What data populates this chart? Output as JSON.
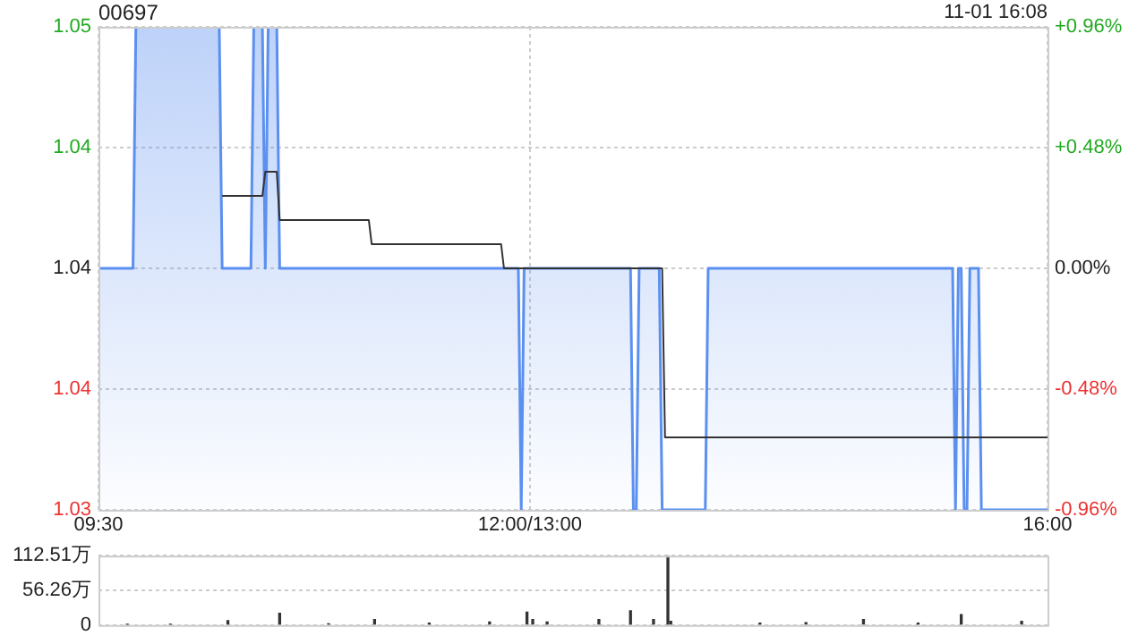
{
  "chart_data": [
    {
      "type": "line",
      "title": "00697",
      "annotations": [
        "11-01 16:08"
      ],
      "categories": [
        "09:30",
        null,
        null,
        null,
        null,
        null,
        null,
        null,
        null,
        null,
        null,
        null,
        null,
        null,
        null,
        null,
        null,
        null,
        null,
        null,
        null,
        null,
        null,
        null,
        null,
        null,
        null,
        null,
        null,
        null,
        null,
        null,
        null,
        null,
        null,
        null,
        null,
        null,
        null,
        null,
        null,
        null,
        null,
        null,
        null,
        null,
        null,
        null,
        null,
        null,
        null,
        null,
        null,
        null,
        null,
        null,
        null,
        null,
        null,
        null,
        null,
        null,
        null,
        null,
        null,
        null,
        null,
        null,
        null,
        null,
        null,
        null,
        null,
        null,
        null,
        null,
        null,
        null,
        null,
        null,
        null,
        null,
        null,
        null,
        null,
        null,
        null,
        null,
        null,
        null,
        null,
        null,
        null,
        null,
        null,
        null,
        null,
        null,
        null,
        null,
        null,
        null,
        null,
        null,
        null,
        null,
        null,
        null,
        null,
        null,
        null,
        null,
        null,
        null,
        null,
        null,
        null,
        null,
        null,
        null,
        null,
        null,
        null,
        null,
        null,
        null,
        null,
        null,
        null,
        null,
        null,
        null,
        null,
        null,
        null,
        null,
        null,
        null,
        null,
        null,
        null,
        null,
        null,
        null,
        null,
        null,
        null,
        null,
        null,
        null,
        "12:00/13:00",
        null,
        null,
        null,
        null,
        null,
        null,
        null,
        null,
        null,
        null,
        null,
        null,
        null,
        null,
        null,
        null,
        null,
        null,
        null,
        null,
        null,
        null,
        null,
        null,
        null,
        null,
        null,
        null,
        null,
        null,
        null,
        null,
        null,
        null,
        null,
        null,
        null,
        null,
        null,
        null,
        null,
        null,
        null,
        null,
        null,
        null,
        null,
        null,
        null,
        null,
        null,
        null,
        null,
        null,
        null,
        null,
        null,
        null,
        null,
        null,
        null,
        null,
        null,
        null,
        null,
        null,
        null,
        null,
        null,
        null,
        null,
        null,
        null,
        null,
        null,
        null,
        null,
        null,
        null,
        null,
        null,
        null,
        null,
        null,
        null,
        null,
        null,
        null,
        null,
        null,
        null,
        null,
        null,
        null,
        null,
        null,
        null,
        null,
        null,
        null,
        null,
        null,
        null,
        null,
        null,
        null,
        null,
        null,
        null,
        null,
        null,
        null,
        null,
        null,
        null,
        null,
        null,
        null,
        null,
        null,
        null,
        null,
        null,
        null,
        null,
        null,
        null,
        null,
        null,
        null,
        null,
        null,
        null,
        null,
        null,
        null,
        null,
        null,
        null,
        null,
        null,
        null,
        null,
        null,
        null,
        null,
        null,
        null,
        null,
        null,
        null,
        null,
        null,
        null,
        null,
        null,
        null,
        null,
        null,
        null,
        null,
        null,
        null,
        null,
        null,
        null,
        null,
        null,
        null,
        null,
        null,
        null,
        null,
        null,
        null,
        null,
        null,
        null,
        null,
        "16:00"
      ],
      "ylim": [
        1.03,
        1.05
      ],
      "yticks": [
        1.03,
        {
          "value": 1.035,
          "label": "1.04"
        },
        1.04,
        {
          "value": 1.045,
          "label": "1.04"
        },
        1.05
      ],
      "y2lim": [
        -0.96,
        0.96
      ],
      "y2ticks": [
        {
          "value": -0.96,
          "label": "-0.96%"
        },
        {
          "value": -0.48,
          "label": "-0.48%"
        },
        {
          "value": 0,
          "label": "0.00%"
        },
        {
          "value": 0.48,
          "label": "+0.48%"
        },
        {
          "value": 0.96,
          "label": "+0.96%"
        }
      ],
      "grid": true,
      "legend": false,
      "series": [
        {
          "type": "area",
          "color": "#5b8ff0",
          "values": [
            1.04,
            1.04,
            1.04,
            1.04,
            1.04,
            1.04,
            1.04,
            1.04,
            1.04,
            1.04,
            1.04,
            1.04,
            1.04,
            1.05,
            1.05,
            1.05,
            1.05,
            1.05,
            1.05,
            1.05,
            1.05,
            1.05,
            1.05,
            1.05,
            1.05,
            1.05,
            1.05,
            1.05,
            1.05,
            1.05,
            1.05,
            1.05,
            1.05,
            1.05,
            1.05,
            1.05,
            1.05,
            1.05,
            1.05,
            1.05,
            1.05,
            1.05,
            1.05,
            1.04,
            1.04,
            1.04,
            1.04,
            1.04,
            1.04,
            1.04,
            1.04,
            1.04,
            1.04,
            1.04,
            1.05,
            1.05,
            1.05,
            1.05,
            1.04,
            1.05,
            1.05,
            1.05,
            1.05,
            1.04,
            1.04,
            1.04,
            1.04,
            1.04,
            1.04,
            1.04,
            1.04,
            1.04,
            1.04,
            1.04,
            1.04,
            1.04,
            1.04,
            1.04,
            1.04,
            1.04,
            1.04,
            1.04,
            1.04,
            1.04,
            1.04,
            1.04,
            1.04,
            1.04,
            1.04,
            1.04,
            1.04,
            1.04,
            1.04,
            1.04,
            1.04,
            1.04,
            1.04,
            1.04,
            1.04,
            1.04,
            1.04,
            1.04,
            1.04,
            1.04,
            1.04,
            1.04,
            1.04,
            1.04,
            1.04,
            1.04,
            1.04,
            1.04,
            1.04,
            1.04,
            1.04,
            1.04,
            1.04,
            1.04,
            1.04,
            1.04,
            1.04,
            1.04,
            1.04,
            1.04,
            1.04,
            1.04,
            1.04,
            1.04,
            1.04,
            1.04,
            1.04,
            1.04,
            1.04,
            1.04,
            1.04,
            1.04,
            1.04,
            1.04,
            1.04,
            1.04,
            1.04,
            1.04,
            1.04,
            1.04,
            1.04,
            1.04,
            1.04,
            1.03,
            1.04,
            1.04,
            1.04,
            1.04,
            1.04,
            1.04,
            1.04,
            1.04,
            1.04,
            1.04,
            1.04,
            1.04,
            1.04,
            1.04,
            1.04,
            1.04,
            1.04,
            1.04,
            1.04,
            1.04,
            1.04,
            1.04,
            1.04,
            1.04,
            1.04,
            1.04,
            1.04,
            1.04,
            1.04,
            1.04,
            1.04,
            1.04,
            1.04,
            1.04,
            1.04,
            1.04,
            1.04,
            1.04,
            1.03,
            1.03,
            1.04,
            1.04,
            1.04,
            1.04,
            1.04,
            1.04,
            1.04,
            1.04,
            1.03,
            1.03,
            1.03,
            1.03,
            1.03,
            1.03,
            1.03,
            1.03,
            1.03,
            1.03,
            1.03,
            1.03,
            1.03,
            1.03,
            1.03,
            1.03,
            1.04,
            1.04,
            1.04,
            1.04,
            1.04,
            1.04,
            1.04,
            1.04,
            1.04,
            1.04,
            1.04,
            1.04,
            1.04,
            1.04,
            1.04,
            1.04,
            1.04,
            1.04,
            1.04,
            1.04,
            1.04,
            1.04,
            1.04,
            1.04,
            1.04,
            1.04,
            1.04,
            1.04,
            1.04,
            1.04,
            1.04,
            1.04,
            1.04,
            1.04,
            1.04,
            1.04,
            1.04,
            1.04,
            1.04,
            1.04,
            1.04,
            1.04,
            1.04,
            1.04,
            1.04,
            1.04,
            1.04,
            1.04,
            1.04,
            1.04,
            1.04,
            1.04,
            1.04,
            1.04,
            1.04,
            1.04,
            1.04,
            1.04,
            1.04,
            1.04,
            1.04,
            1.04,
            1.04,
            1.04,
            1.04,
            1.04,
            1.04,
            1.04,
            1.04,
            1.04,
            1.04,
            1.04,
            1.04,
            1.04,
            1.04,
            1.04,
            1.04,
            1.04,
            1.04,
            1.04,
            1.04,
            1.04,
            1.04,
            1.04,
            1.04,
            1.04,
            1.03,
            1.04,
            1.04,
            1.03,
            1.03,
            1.04,
            1.04,
            1.04,
            1.04,
            1.03,
            1.03,
            1.03,
            1.03,
            1.03,
            1.03,
            1.03,
            1.03,
            1.03,
            1.03,
            1.03,
            1.03,
            1.03,
            1.03,
            1.03,
            1.03,
            1.03,
            1.03,
            1.03,
            1.03,
            1.03,
            1.03,
            1.03,
            1.03
          ]
        },
        {
          "type": "line",
          "color": "#333333",
          "values": [
            null,
            null,
            null,
            null,
            null,
            null,
            null,
            null,
            null,
            null,
            null,
            null,
            null,
            null,
            null,
            null,
            null,
            null,
            null,
            null,
            null,
            null,
            null,
            null,
            null,
            null,
            null,
            null,
            null,
            null,
            null,
            null,
            null,
            null,
            null,
            null,
            null,
            null,
            null,
            null,
            null,
            null,
            null,
            1.043,
            1.043,
            1.043,
            1.043,
            1.043,
            1.043,
            1.043,
            1.043,
            1.043,
            1.043,
            1.043,
            1.043,
            1.043,
            1.043,
            1.043,
            1.044,
            1.044,
            1.044,
            1.044,
            1.044,
            1.042,
            1.042,
            1.042,
            1.042,
            1.042,
            1.042,
            1.042,
            1.042,
            1.042,
            1.042,
            1.042,
            1.042,
            1.042,
            1.042,
            1.042,
            1.042,
            1.042,
            1.042,
            1.042,
            1.042,
            1.042,
            1.042,
            1.042,
            1.042,
            1.042,
            1.042,
            1.042,
            1.042,
            1.042,
            1.042,
            1.042,
            1.042,
            1.041,
            1.041,
            1.041,
            1.041,
            1.041,
            1.041,
            1.041,
            1.041,
            1.041,
            1.041,
            1.041,
            1.041,
            1.041,
            1.041,
            1.041,
            1.041,
            1.041,
            1.041,
            1.041,
            1.041,
            1.041,
            1.041,
            1.041,
            1.041,
            1.041,
            1.041,
            1.041,
            1.041,
            1.041,
            1.041,
            1.041,
            1.041,
            1.041,
            1.041,
            1.041,
            1.041,
            1.041,
            1.041,
            1.041,
            1.041,
            1.041,
            1.041,
            1.041,
            1.041,
            1.041,
            1.041,
            1.04,
            1.04,
            1.04,
            1.04,
            1.04,
            1.04,
            1.04,
            1.04,
            1.04,
            1.04,
            1.04,
            1.04,
            1.04,
            1.04,
            1.04,
            1.04,
            1.04,
            1.04,
            1.04,
            1.04,
            1.04,
            1.04,
            1.04,
            1.04,
            1.04,
            1.04,
            1.04,
            1.04,
            1.04,
            1.04,
            1.04,
            1.04,
            1.04,
            1.04,
            1.04,
            1.04,
            1.04,
            1.04,
            1.04,
            1.04,
            1.04,
            1.04,
            1.04,
            1.04,
            1.04,
            1.04,
            1.04,
            1.04,
            1.04,
            1.04,
            1.04,
            1.04,
            1.04,
            1.04,
            1.04,
            1.04,
            1.033,
            1.033,
            1.033,
            1.033,
            1.033,
            1.033,
            1.033,
            1.033,
            1.033,
            1.033,
            1.033,
            1.033,
            1.033,
            1.033,
            1.033,
            1.033,
            1.033,
            1.033,
            1.033,
            1.033,
            1.033,
            1.033,
            1.033,
            1.033,
            1.033,
            1.033,
            1.033,
            1.033,
            1.033,
            1.033,
            1.033,
            1.033,
            1.033,
            1.033,
            1.033,
            1.033,
            1.033,
            1.033,
            1.033,
            1.033,
            1.033,
            1.033,
            1.033,
            1.033,
            1.033,
            1.033,
            1.033,
            1.033,
            1.033,
            1.033,
            1.033,
            1.033,
            1.033,
            1.033,
            1.033,
            1.033,
            1.033,
            1.033,
            1.033,
            1.033,
            1.033,
            1.033,
            1.033,
            1.033,
            1.033,
            1.033,
            1.033,
            1.033,
            1.033,
            1.033,
            1.033,
            1.033,
            1.033,
            1.033,
            1.033,
            1.033,
            1.033,
            1.033,
            1.033,
            1.033,
            1.033,
            1.033,
            1.033,
            1.033,
            1.033,
            1.033,
            1.033,
            1.033,
            1.033,
            1.033,
            1.033,
            1.033,
            1.033,
            1.033,
            1.033,
            1.033,
            1.033,
            1.033,
            1.033,
            1.033,
            1.033,
            1.033,
            1.033,
            1.033,
            1.033,
            1.033,
            1.033,
            1.033,
            1.033,
            1.033,
            1.033,
            1.033,
            1.033,
            1.033,
            1.033,
            1.033,
            1.033,
            1.033,
            1.033,
            1.033,
            1.033,
            1.033,
            1.033,
            1.033,
            1.033,
            1.033,
            1.033,
            1.033,
            1.033,
            1.033,
            1.033,
            1.033,
            1.033,
            1.033
          ]
        }
      ]
    },
    {
      "type": "bar",
      "color": "#333333",
      "ylim": [
        0,
        112.51
      ],
      "yticks": [
        0,
        {
          "value": 56.26,
          "label": "56.26万"
        },
        {
          "value": 112.51,
          "label": "112.51万"
        }
      ],
      "grid": "y",
      "legend": false,
      "tick_labels": "y",
      "categories": [
        null,
        null,
        null,
        null,
        null,
        null,
        null,
        null,
        null,
        null,
        null,
        null,
        null,
        null,
        null,
        null,
        null,
        null,
        null,
        null,
        null,
        null,
        null,
        null,
        null,
        null,
        null,
        null,
        null,
        null,
        null,
        null,
        null,
        null,
        null,
        null,
        null,
        null,
        null,
        null,
        null,
        null,
        null,
        null,
        null,
        null,
        null,
        null,
        null,
        null,
        null,
        null,
        null,
        null,
        null,
        null,
        null,
        null,
        null,
        null,
        null,
        null,
        null,
        null,
        null,
        null,
        null,
        null,
        null,
        null,
        null,
        null,
        null,
        null,
        null,
        null,
        null,
        null,
        null,
        null,
        null,
        null,
        null,
        null,
        null,
        null,
        null,
        null,
        null,
        null,
        null,
        null,
        null,
        null,
        null,
        null,
        null,
        null,
        null,
        null,
        null,
        null,
        null,
        null,
        null,
        null,
        null,
        null,
        null,
        null,
        null,
        null,
        null,
        null,
        null,
        null,
        null,
        null,
        null,
        null,
        null,
        null,
        null,
        null,
        null,
        null,
        null,
        null,
        null,
        null,
        null,
        null,
        null,
        null,
        null,
        null,
        null,
        null,
        null,
        null,
        null,
        null,
        null,
        null,
        null,
        null,
        null,
        null,
        null,
        null,
        null,
        null,
        null,
        null,
        null,
        null,
        null,
        null,
        null,
        null,
        null,
        null,
        null,
        null,
        null,
        null,
        null,
        null,
        null,
        null,
        null,
        null,
        null,
        null,
        null,
        null,
        null,
        null,
        null,
        null,
        null,
        null,
        null,
        null,
        null,
        null,
        null,
        null,
        null,
        null,
        null,
        null,
        null,
        null,
        null,
        null,
        null,
        null,
        null,
        null,
        null,
        null,
        null,
        null,
        null,
        null,
        null,
        null,
        null,
        null,
        null,
        null,
        null,
        null,
        null,
        null,
        null,
        null,
        null,
        null,
        null,
        null,
        null,
        null,
        null,
        null,
        null,
        null,
        null,
        null,
        null,
        null,
        null,
        null,
        null,
        null,
        null,
        null,
        null,
        null,
        null,
        null,
        null,
        null,
        null,
        null,
        null,
        null,
        null,
        null,
        null,
        null,
        null,
        null,
        null,
        null,
        null,
        null,
        null,
        null,
        null,
        null,
        null,
        null,
        null,
        null,
        null,
        null,
        null,
        null,
        null,
        null,
        null,
        null,
        null,
        null,
        null,
        null,
        null,
        null,
        null,
        null,
        null,
        null,
        null,
        null,
        null,
        null,
        null,
        null,
        null,
        null,
        null,
        null,
        null,
        null,
        null,
        null,
        null,
        null,
        null,
        null,
        null,
        null,
        null,
        null,
        null,
        null,
        null,
        null,
        null,
        null,
        null,
        null,
        null,
        null,
        null,
        null,
        null,
        null,
        null,
        null,
        null,
        null,
        null,
        null,
        null,
        null,
        null,
        null,
        null
      ],
      "values": [
        null,
        null,
        null,
        null,
        null,
        null,
        null,
        null,
        null,
        null,
        1,
        null,
        null,
        null,
        null,
        null,
        null,
        null,
        null,
        null,
        null,
        null,
        null,
        null,
        null,
        1,
        null,
        null,
        null,
        null,
        null,
        null,
        null,
        null,
        null,
        null,
        null,
        null,
        null,
        null,
        null,
        null,
        null,
        null,
        null,
        7,
        null,
        null,
        null,
        null,
        null,
        null,
        null,
        null,
        null,
        null,
        null,
        null,
        null,
        null,
        null,
        null,
        null,
        19,
        null,
        null,
        null,
        null,
        null,
        null,
        null,
        null,
        null,
        null,
        null,
        null,
        null,
        null,
        null,
        null,
        2,
        null,
        null,
        null,
        null,
        null,
        null,
        null,
        null,
        null,
        null,
        null,
        null,
        null,
        null,
        null,
        9,
        null,
        null,
        null,
        null,
        null,
        null,
        null,
        null,
        null,
        null,
        null,
        null,
        null,
        null,
        null,
        null,
        null,
        null,
        3,
        null,
        null,
        null,
        null,
        null,
        null,
        null,
        null,
        null,
        null,
        null,
        null,
        null,
        null,
        null,
        null,
        null,
        null,
        null,
        null,
        5,
        null,
        null,
        null,
        null,
        null,
        null,
        null,
        null,
        null,
        null,
        null,
        null,
        21,
        null,
        9,
        null,
        null,
        null,
        null,
        5,
        null,
        null,
        null,
        null,
        null,
        null,
        null,
        null,
        null,
        null,
        null,
        null,
        null,
        null,
        null,
        null,
        null,
        9,
        null,
        null,
        null,
        null,
        null,
        null,
        null,
        null,
        null,
        null,
        23,
        null,
        null,
        null,
        null,
        null,
        null,
        null,
        9,
        null,
        null,
        null,
        null,
        112.51,
        6,
        null,
        null,
        null,
        null,
        null,
        null,
        null,
        null,
        null,
        null,
        null,
        null,
        null,
        null,
        null,
        null,
        null,
        null,
        null,
        null,
        null,
        null,
        null,
        null,
        null,
        null,
        null,
        null,
        null,
        null,
        3,
        null,
        null,
        null,
        null,
        null,
        null,
        null,
        null,
        null,
        null,
        null,
        null,
        null,
        null,
        null,
        4,
        null,
        null,
        null,
        null,
        null,
        null,
        null,
        null,
        null,
        null,
        null,
        null,
        null,
        null,
        null,
        null,
        null,
        null,
        null,
        9,
        null,
        null,
        null,
        null,
        null,
        null,
        null,
        null,
        null,
        null,
        null,
        null,
        null,
        null,
        null,
        null,
        null,
        null,
        3,
        null,
        null,
        null,
        null,
        null,
        null,
        null,
        null,
        null,
        null,
        null,
        null,
        null,
        null,
        17,
        null,
        null,
        null,
        null,
        null,
        null,
        null,
        null,
        null,
        null,
        null,
        null,
        null,
        null,
        null,
        null,
        null,
        null,
        null,
        null,
        6,
        null,
        null,
        null,
        null,
        null,
        null,
        null,
        null,
        null
      ]
    }
  ]
}
